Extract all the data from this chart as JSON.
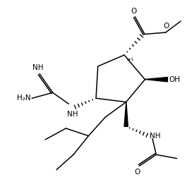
{
  "bg_color": "#ffffff",
  "line_color": "#000000",
  "fig_width": 2.72,
  "fig_height": 2.68,
  "dpi": 100,
  "xlim": [
    0,
    10
  ],
  "ylim": [
    0,
    10
  ]
}
